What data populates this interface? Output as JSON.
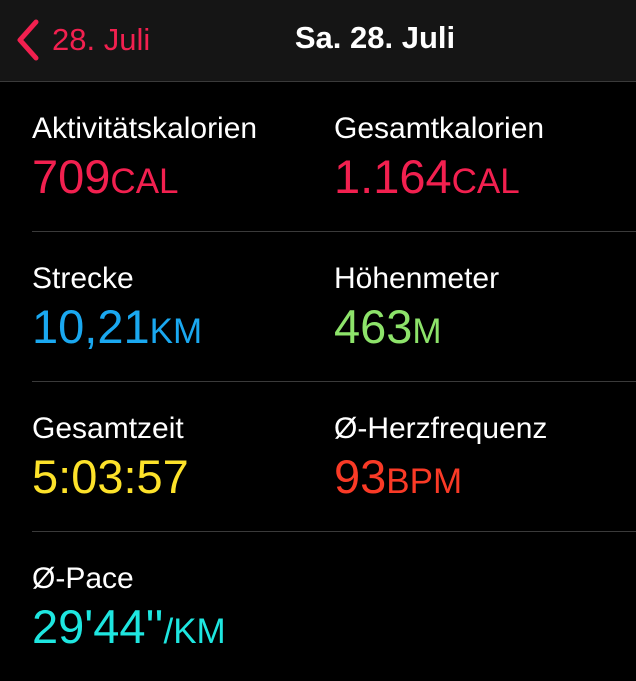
{
  "nav": {
    "back_label": "28. Juli",
    "title": "Sa. 28. Juli",
    "accent": "#f2204f"
  },
  "metrics": [
    {
      "label": "Aktivitätskalorien",
      "value": "709",
      "unit": "CAL",
      "color": "#f2204f"
    },
    {
      "label": "Gesamtkalorien",
      "value": "1.164",
      "unit": "CAL",
      "color": "#f2204f"
    },
    {
      "label": "Strecke",
      "value": "10,21",
      "unit": "KM",
      "color": "#1aa8f0"
    },
    {
      "label": "Höhenmeter",
      "value": "463",
      "unit": "M",
      "color": "#8de36a"
    },
    {
      "label": "Gesamtzeit",
      "value": "5:03:57",
      "unit": "",
      "color": "#fde22a"
    },
    {
      "label": "Ø-Herzfrequenz",
      "value": "93",
      "unit": "BPM",
      "color": "#fa3a26"
    },
    {
      "label": "Ø-Pace",
      "value": "29'44''",
      "unit": "/KM",
      "color": "#1ee6e0"
    }
  ]
}
